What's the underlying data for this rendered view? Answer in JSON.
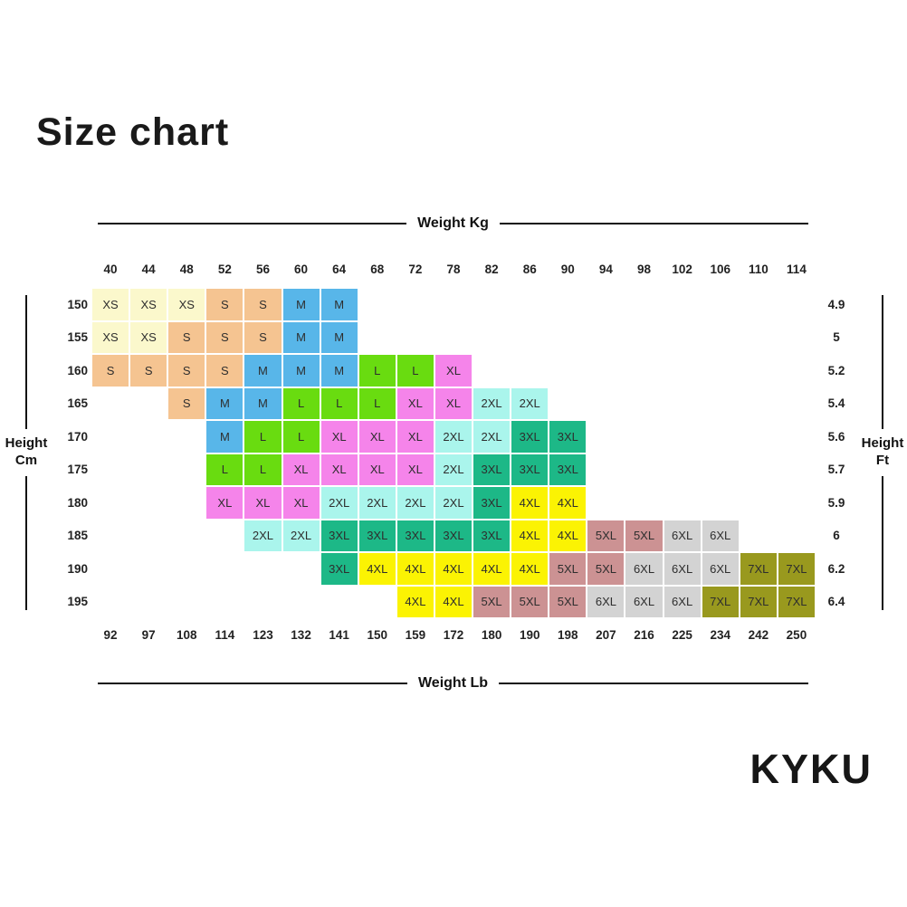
{
  "title": "Size chart",
  "brand": "KYKU",
  "axes": {
    "top_label": "Weight Kg",
    "bottom_label": "Weight Lb",
    "left_label_line1": "Height",
    "left_label_line2": "Cm",
    "right_label_line1": "Height",
    "right_label_line2": "Ft"
  },
  "chart_data": {
    "type": "heatmap",
    "title": "Size chart",
    "x_top_label": "Weight Kg",
    "x_bottom_label": "Weight Lb",
    "y_left_label": "Height Cm",
    "y_right_label": "Height Ft",
    "x_top_kg": [
      "40",
      "44",
      "48",
      "52",
      "56",
      "60",
      "64",
      "68",
      "72",
      "78",
      "82",
      "86",
      "90",
      "94",
      "98",
      "102",
      "106",
      "110",
      "114"
    ],
    "x_bottom_lb": [
      "92",
      "97",
      "108",
      "114",
      "123",
      "132",
      "141",
      "150",
      "159",
      "172",
      "180",
      "190",
      "198",
      "207",
      "216",
      "225",
      "234",
      "242",
      "250"
    ],
    "y_left_cm": [
      "150",
      "155",
      "160",
      "165",
      "170",
      "175",
      "180",
      "185",
      "190",
      "195"
    ],
    "y_right_ft": [
      "4.9",
      "5",
      "5.2",
      "5.4",
      "5.6",
      "5.7",
      "5.9",
      "6",
      "6.2",
      "6.4"
    ],
    "size_colors": {
      "XS": "#FBF8CC",
      "S": "#F5C491",
      "M": "#58B6E9",
      "L": "#69DC10",
      "XL": "#F584EA",
      "2XL": "#AAF5EC",
      "3XL": "#1DB887",
      "4XL": "#FBF303",
      "5XL": "#CC9293",
      "6XL": "#D3D3D3",
      "7XL": "#99991E"
    },
    "rows": [
      {
        "cm": "150",
        "ft": "4.9",
        "cells": [
          "XS",
          "XS",
          "XS",
          "S",
          "S",
          "M",
          "M",
          "",
          "",
          "",
          "",
          "",
          "",
          "",
          "",
          "",
          "",
          "",
          ""
        ]
      },
      {
        "cm": "155",
        "ft": "5",
        "cells": [
          "XS",
          "XS",
          "S",
          "S",
          "S",
          "M",
          "M",
          "",
          "",
          "",
          "",
          "",
          "",
          "",
          "",
          "",
          "",
          "",
          ""
        ]
      },
      {
        "cm": "160",
        "ft": "5.2",
        "cells": [
          "S",
          "S",
          "S",
          "S",
          "M",
          "M",
          "M",
          "L",
          "L",
          "XL",
          "",
          "",
          "",
          "",
          "",
          "",
          "",
          "",
          ""
        ]
      },
      {
        "cm": "165",
        "ft": "5.4",
        "cells": [
          "",
          "",
          "S",
          "M",
          "M",
          "L",
          "L",
          "L",
          "XL",
          "XL",
          "2XL",
          "2XL",
          "",
          "",
          "",
          "",
          "",
          "",
          ""
        ]
      },
      {
        "cm": "170",
        "ft": "5.6",
        "cells": [
          "",
          "",
          "",
          "M",
          "L",
          "L",
          "XL",
          "XL",
          "XL",
          "2XL",
          "2XL",
          "3XL",
          "3XL",
          "",
          "",
          "",
          "",
          "",
          ""
        ]
      },
      {
        "cm": "175",
        "ft": "5.7",
        "cells": [
          "",
          "",
          "",
          "L",
          "L",
          "XL",
          "XL",
          "XL",
          "XL",
          "2XL",
          "3XL",
          "3XL",
          "3XL",
          "",
          "",
          "",
          "",
          "",
          ""
        ]
      },
      {
        "cm": "180",
        "ft": "5.9",
        "cells": [
          "",
          "",
          "",
          "XL",
          "XL",
          "XL",
          "2XL",
          "2XL",
          "2XL",
          "2XL",
          "3XL",
          "4XL",
          "4XL",
          "",
          "",
          "",
          "",
          "",
          ""
        ]
      },
      {
        "cm": "185",
        "ft": "6",
        "cells": [
          "",
          "",
          "",
          "",
          "2XL",
          "2XL",
          "3XL",
          "3XL",
          "3XL",
          "3XL",
          "3XL",
          "4XL",
          "4XL",
          "5XL",
          "5XL",
          "6XL",
          "6XL",
          "",
          ""
        ]
      },
      {
        "cm": "190",
        "ft": "6.2",
        "cells": [
          "",
          "",
          "",
          "",
          "",
          "",
          "3XL",
          "4XL",
          "4XL",
          "4XL",
          "4XL",
          "4XL",
          "5XL",
          "5XL",
          "6XL",
          "6XL",
          "6XL",
          "7XL",
          "7XL"
        ]
      },
      {
        "cm": "195",
        "ft": "6.4",
        "cells": [
          "",
          "",
          "",
          "",
          "",
          "",
          "",
          "",
          "4XL",
          "4XL",
          "5XL",
          "5XL",
          "5XL",
          "6XL",
          "6XL",
          "6XL",
          "7XL",
          "7XL",
          "7XL"
        ]
      }
    ]
  }
}
